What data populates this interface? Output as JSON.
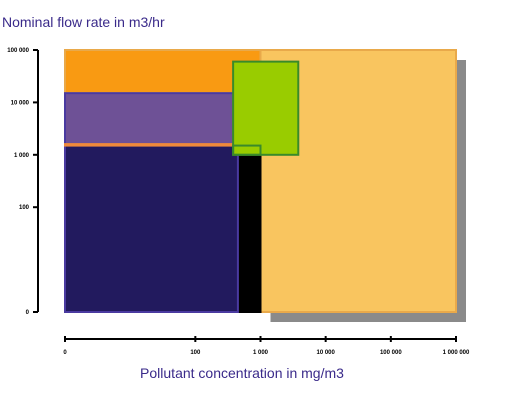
{
  "chart_data": {
    "type": "area",
    "title": "",
    "ylabel": "Nominal flow rate in m3/hr",
    "xlabel": "Pollutant concentration in mg/m3",
    "x_scale": "log",
    "y_scale": "log",
    "x_ticks": [
      {
        "value": 1,
        "label": "0"
      },
      {
        "value": 100,
        "label": "100"
      },
      {
        "value": 1000,
        "label": "1 000"
      },
      {
        "value": 10000,
        "label": "10 000"
      },
      {
        "value": 100000,
        "label": "100 000"
      },
      {
        "value": 1000000,
        "label": "1 000 000"
      }
    ],
    "y_ticks": [
      {
        "value": 1,
        "label": "0"
      },
      {
        "value": 100,
        "label": "100"
      },
      {
        "value": 1000,
        "label": "1 000"
      },
      {
        "value": 10000,
        "label": "10 000"
      },
      {
        "value": 100000,
        "label": "100 000"
      }
    ],
    "xlim": [
      1,
      1000000
    ],
    "ylim": [
      1,
      100000
    ],
    "grid": false,
    "regions": [
      {
        "x": [
          1000,
          1000000
        ],
        "y": [
          1,
          100000
        ],
        "fill": "#f9c55f",
        "stroke": "#e9a94a",
        "shadow": true
      },
      {
        "x": [
          1,
          1000
        ],
        "y": [
          15000,
          100000
        ],
        "fill": "#f99a12",
        "stroke": "#e9a94a",
        "shadow": false
      },
      {
        "x": [
          1,
          1000
        ],
        "y": [
          1,
          1500
        ],
        "fill": "#000000",
        "stroke": "#000000",
        "shadow": false
      },
      {
        "x": [
          1,
          450
        ],
        "y": [
          1500,
          15000
        ],
        "fill": "#6e5196",
        "stroke": "#4a3aa0",
        "shadow": false
      },
      {
        "x": [
          1,
          450
        ],
        "y": [
          1,
          1500
        ],
        "fill": "#221a5e",
        "stroke": "#4a3aa0",
        "shadow": false
      },
      {
        "x": [
          1,
          1000
        ],
        "y": [
          1500,
          1600
        ],
        "fill": "#f08a3a",
        "stroke": "#f08a3a",
        "shadow": false
      },
      {
        "x": [
          380,
          3800
        ],
        "y": [
          1000,
          60000
        ],
        "fill": "#99cc00",
        "stroke": "#3a8a2a",
        "shadow": false
      },
      {
        "x": [
          380,
          1000
        ],
        "y": [
          1000,
          1500
        ],
        "fill": "none",
        "stroke": "#3a8a2a",
        "shadow": false
      }
    ]
  }
}
